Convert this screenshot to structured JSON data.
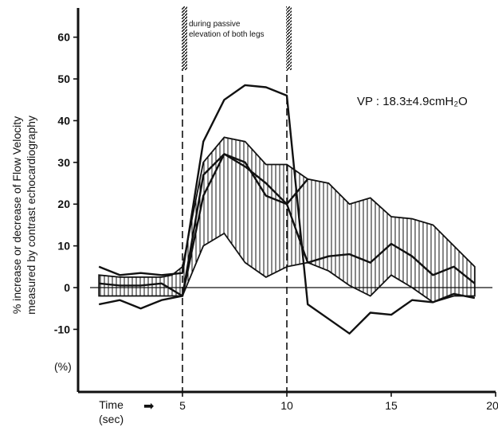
{
  "chart_data": {
    "type": "line",
    "ylabel_lines": [
      "% increase or decrease of Flow Velocity",
      "measured by contrast echocardiography"
    ],
    "y_unit_label": "(%)",
    "xlabel": "Time",
    "x_unit_label": "(sec)",
    "xlim": [
      0,
      20
    ],
    "ylim": [
      -25,
      67
    ],
    "x_ticks": [
      5,
      10,
      15,
      20
    ],
    "y_ticks": [
      -10,
      0,
      10,
      20,
      30,
      40,
      50,
      60
    ],
    "x_tick_labels": [
      "5",
      "10",
      "15",
      "20"
    ],
    "y_tick_labels": [
      "-10",
      "0",
      "10",
      "20",
      "30",
      "40",
      "50",
      "60"
    ],
    "phase_markers": [
      5,
      10
    ],
    "phase_label_lines": [
      "during passive",
      "elevation of both legs"
    ],
    "annotation": "VP : 18.3±4.9cmH₂O",
    "band_upper": [
      [
        1,
        3
      ],
      [
        2,
        2.5
      ],
      [
        3,
        2.5
      ],
      [
        4,
        2.5
      ],
      [
        4.5,
        3
      ],
      [
        5,
        5
      ],
      [
        6,
        30
      ],
      [
        7,
        36
      ],
      [
        8,
        35
      ],
      [
        9,
        29.5
      ],
      [
        10,
        29.5
      ],
      [
        11,
        26
      ],
      [
        12,
        25
      ],
      [
        13,
        20
      ],
      [
        14,
        21.5
      ],
      [
        15,
        17
      ],
      [
        16,
        16.5
      ],
      [
        17,
        15
      ],
      [
        18,
        10
      ],
      [
        19,
        5
      ]
    ],
    "band_lower": [
      [
        1,
        -2
      ],
      [
        2,
        -2
      ],
      [
        3,
        -2
      ],
      [
        4,
        -2
      ],
      [
        4.5,
        -2
      ],
      [
        5,
        -2
      ],
      [
        6,
        10
      ],
      [
        7,
        13
      ],
      [
        8,
        6
      ],
      [
        9,
        2.5
      ],
      [
        10,
        5
      ],
      [
        11,
        6
      ],
      [
        12,
        4
      ],
      [
        13,
        0.5
      ],
      [
        14,
        -2
      ],
      [
        15,
        3
      ],
      [
        16,
        0
      ],
      [
        17,
        -3.5
      ],
      [
        18,
        -2
      ],
      [
        19,
        -2
      ]
    ],
    "series": [
      {
        "values": [
          [
            1,
            5
          ],
          [
            2,
            3
          ],
          [
            3,
            3.5
          ],
          [
            4,
            3
          ],
          [
            5,
            3.5
          ],
          [
            6,
            35
          ],
          [
            7,
            45
          ],
          [
            8,
            48.5
          ],
          [
            9,
            48
          ],
          [
            10,
            46
          ],
          [
            11,
            -4
          ],
          [
            12,
            -7.5
          ],
          [
            13,
            -11
          ],
          [
            14,
            -6
          ],
          [
            15,
            -6.5
          ],
          [
            16,
            -3
          ],
          [
            17,
            -3.5
          ],
          [
            18,
            -1.5
          ],
          [
            19,
            -2.5
          ]
        ]
      },
      {
        "values": [
          [
            1,
            1
          ],
          [
            2,
            0.5
          ],
          [
            3,
            0.5
          ],
          [
            4,
            1
          ],
          [
            5,
            -2
          ],
          [
            6,
            22
          ],
          [
            7,
            32
          ],
          [
            8,
            29
          ],
          [
            9,
            25
          ],
          [
            10,
            20
          ],
          [
            11,
            6
          ],
          [
            12,
            7.5
          ],
          [
            13,
            8
          ],
          [
            14,
            6
          ],
          [
            15,
            10.5
          ],
          [
            16,
            7.5
          ],
          [
            17,
            3
          ],
          [
            18,
            5
          ],
          [
            19,
            1
          ]
        ]
      },
      {
        "values": [
          [
            1,
            -4
          ],
          [
            2,
            -3
          ],
          [
            3,
            -5
          ],
          [
            4,
            -3
          ],
          [
            5,
            -2
          ],
          [
            6,
            27
          ],
          [
            7,
            32
          ],
          [
            8,
            30
          ],
          [
            9,
            22
          ],
          [
            10,
            20
          ],
          [
            11,
            26
          ]
        ]
      }
    ]
  }
}
